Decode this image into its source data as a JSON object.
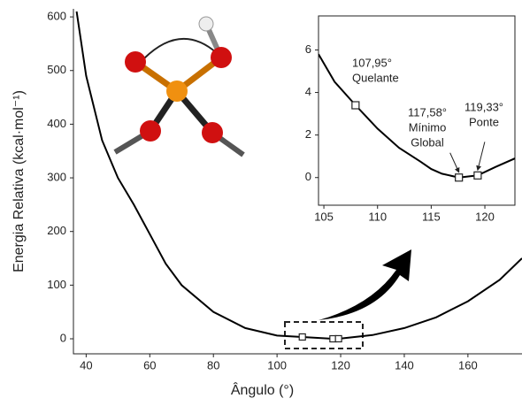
{
  "chart_data": [
    {
      "type": "line",
      "x_label": "Ângulo (°)",
      "y_label": "Energia Relativa (kcal·mol⁻¹)",
      "xlim": [
        36,
        177
      ],
      "ylim": [
        -28,
        615
      ],
      "xticks": [
        40,
        60,
        80,
        100,
        120,
        140,
        160
      ],
      "yticks": [
        0,
        100,
        200,
        300,
        400,
        500,
        600
      ],
      "x": [
        37,
        40,
        45,
        50,
        55,
        60,
        65,
        70,
        80,
        90,
        100,
        107.95,
        117.58,
        119.33,
        130,
        140,
        150,
        160,
        170,
        177
      ],
      "values": [
        610,
        490,
        370,
        300,
        250,
        195,
        140,
        100,
        50,
        20,
        6,
        3.4,
        0,
        0.1,
        7,
        20,
        40,
        70,
        110,
        150
      ],
      "markers": {
        "x": [
          107.95,
          117.58,
          119.33
        ],
        "values": [
          3.4,
          0,
          0.1
        ]
      },
      "color": "#000000"
    },
    {
      "type": "line",
      "xlim": [
        104.5,
        122.8
      ],
      "ylim": [
        -1.3,
        7.6
      ],
      "xticks": [
        105,
        110,
        115,
        120
      ],
      "yticks": [
        0,
        2,
        4,
        6
      ],
      "x": [
        104.5,
        106,
        107.95,
        110,
        112,
        114,
        115,
        116,
        117.58,
        119.33,
        121,
        122.8
      ],
      "values": [
        5.8,
        4.5,
        3.4,
        2.3,
        1.4,
        0.75,
        0.4,
        0.18,
        0,
        0.1,
        0.5,
        0.9
      ],
      "markers": {
        "x": [
          107.95,
          117.58,
          119.33
        ],
        "values": [
          3.4,
          0,
          0.1
        ]
      },
      "annotations": [
        [
          "107,95°",
          "Quelante"
        ],
        [
          "117,58°",
          "Mínimo",
          "Global"
        ],
        [
          "119,33°",
          "Ponte"
        ]
      ],
      "color": "#000000"
    }
  ]
}
